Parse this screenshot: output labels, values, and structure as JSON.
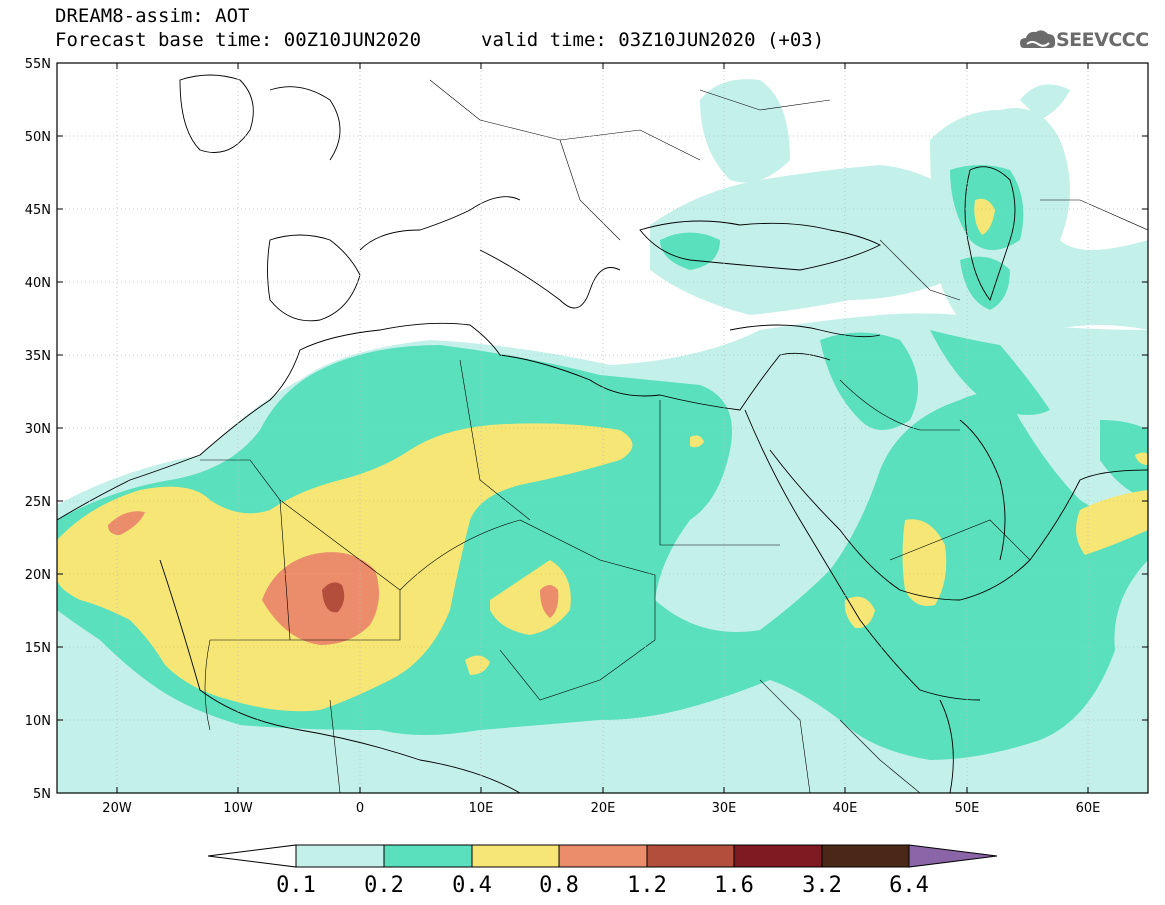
{
  "header": {
    "model_title": "DREAM8-assim: AOT",
    "base_time": "Forecast base time: 00Z10JUN2020",
    "valid_time": "valid time: 03Z10JUN2020 (+03)",
    "logo_text": "SEEVCCC"
  },
  "map": {
    "lat_labels": [
      "55N",
      "50N",
      "45N",
      "40N",
      "35N",
      "30N",
      "25N",
      "20N",
      "15N",
      "10N",
      "5N"
    ],
    "lon_labels": [
      "20W",
      "10W",
      "0",
      "10E",
      "20E",
      "30E",
      "40E",
      "50E",
      "60E"
    ],
    "extent": {
      "lon": [
        -25,
        65
      ],
      "lat": [
        5,
        55
      ]
    }
  },
  "colorbar": {
    "labels": [
      "0.1",
      "0.2",
      "0.4",
      "0.8",
      "1.2",
      "1.6",
      "3.2",
      "6.4"
    ],
    "colors": [
      "#c4f0ea",
      "#5ae0bc",
      "#f5e676",
      "#eb8c6b",
      "#b44e3c",
      "#7d1a22",
      "#4a2716",
      "#8a65a8"
    ],
    "under_color": "#ffffff"
  }
}
